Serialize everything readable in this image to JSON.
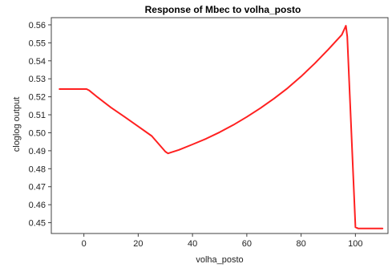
{
  "chart_data": {
    "type": "line",
    "title": "Response of Mbec to volha_posto",
    "xlabel": "volha_posto",
    "ylabel": "cloglog output",
    "xlim": [
      -12,
      112
    ],
    "ylim": [
      0.444,
      0.564
    ],
    "x_ticks": [
      0,
      20,
      40,
      60,
      80,
      100
    ],
    "y_ticks": [
      0.45,
      0.46,
      0.47,
      0.48,
      0.49,
      0.5,
      0.51,
      0.52,
      0.53,
      0.54,
      0.55,
      0.56
    ],
    "y_tick_labels": [
      "0.45",
      "0.46",
      "0.47",
      "0.48",
      "0.49",
      "0.50",
      "0.51",
      "0.52",
      "0.53",
      "0.54",
      "0.55",
      "0.56"
    ],
    "x_tick_labels": [
      "0",
      "20",
      "40",
      "60",
      "80",
      "100"
    ],
    "grid": true,
    "legend": "none",
    "series": [
      {
        "color": "#ff2020",
        "x": [
          -9,
          0,
          1,
          2,
          5,
          10,
          15,
          20,
          25,
          30,
          31,
          32,
          35,
          40,
          45,
          50,
          55,
          60,
          65,
          70,
          75,
          80,
          85,
          90,
          95,
          96.5,
          97,
          100,
          101,
          110
        ],
        "y": [
          0.5243,
          0.5243,
          0.5243,
          0.5235,
          0.5198,
          0.514,
          0.5088,
          0.5035,
          0.4982,
          0.4895,
          0.4885,
          0.489,
          0.4905,
          0.4935,
          0.4967,
          0.5003,
          0.5043,
          0.5088,
          0.5137,
          0.519,
          0.5248,
          0.5313,
          0.5385,
          0.5463,
          0.5545,
          0.5595,
          0.5535,
          0.4475,
          0.4468,
          0.4468
        ]
      }
    ]
  },
  "colors": {
    "grid": "#bfbfbf",
    "axis": "#404040",
    "line": "#ff2020"
  }
}
